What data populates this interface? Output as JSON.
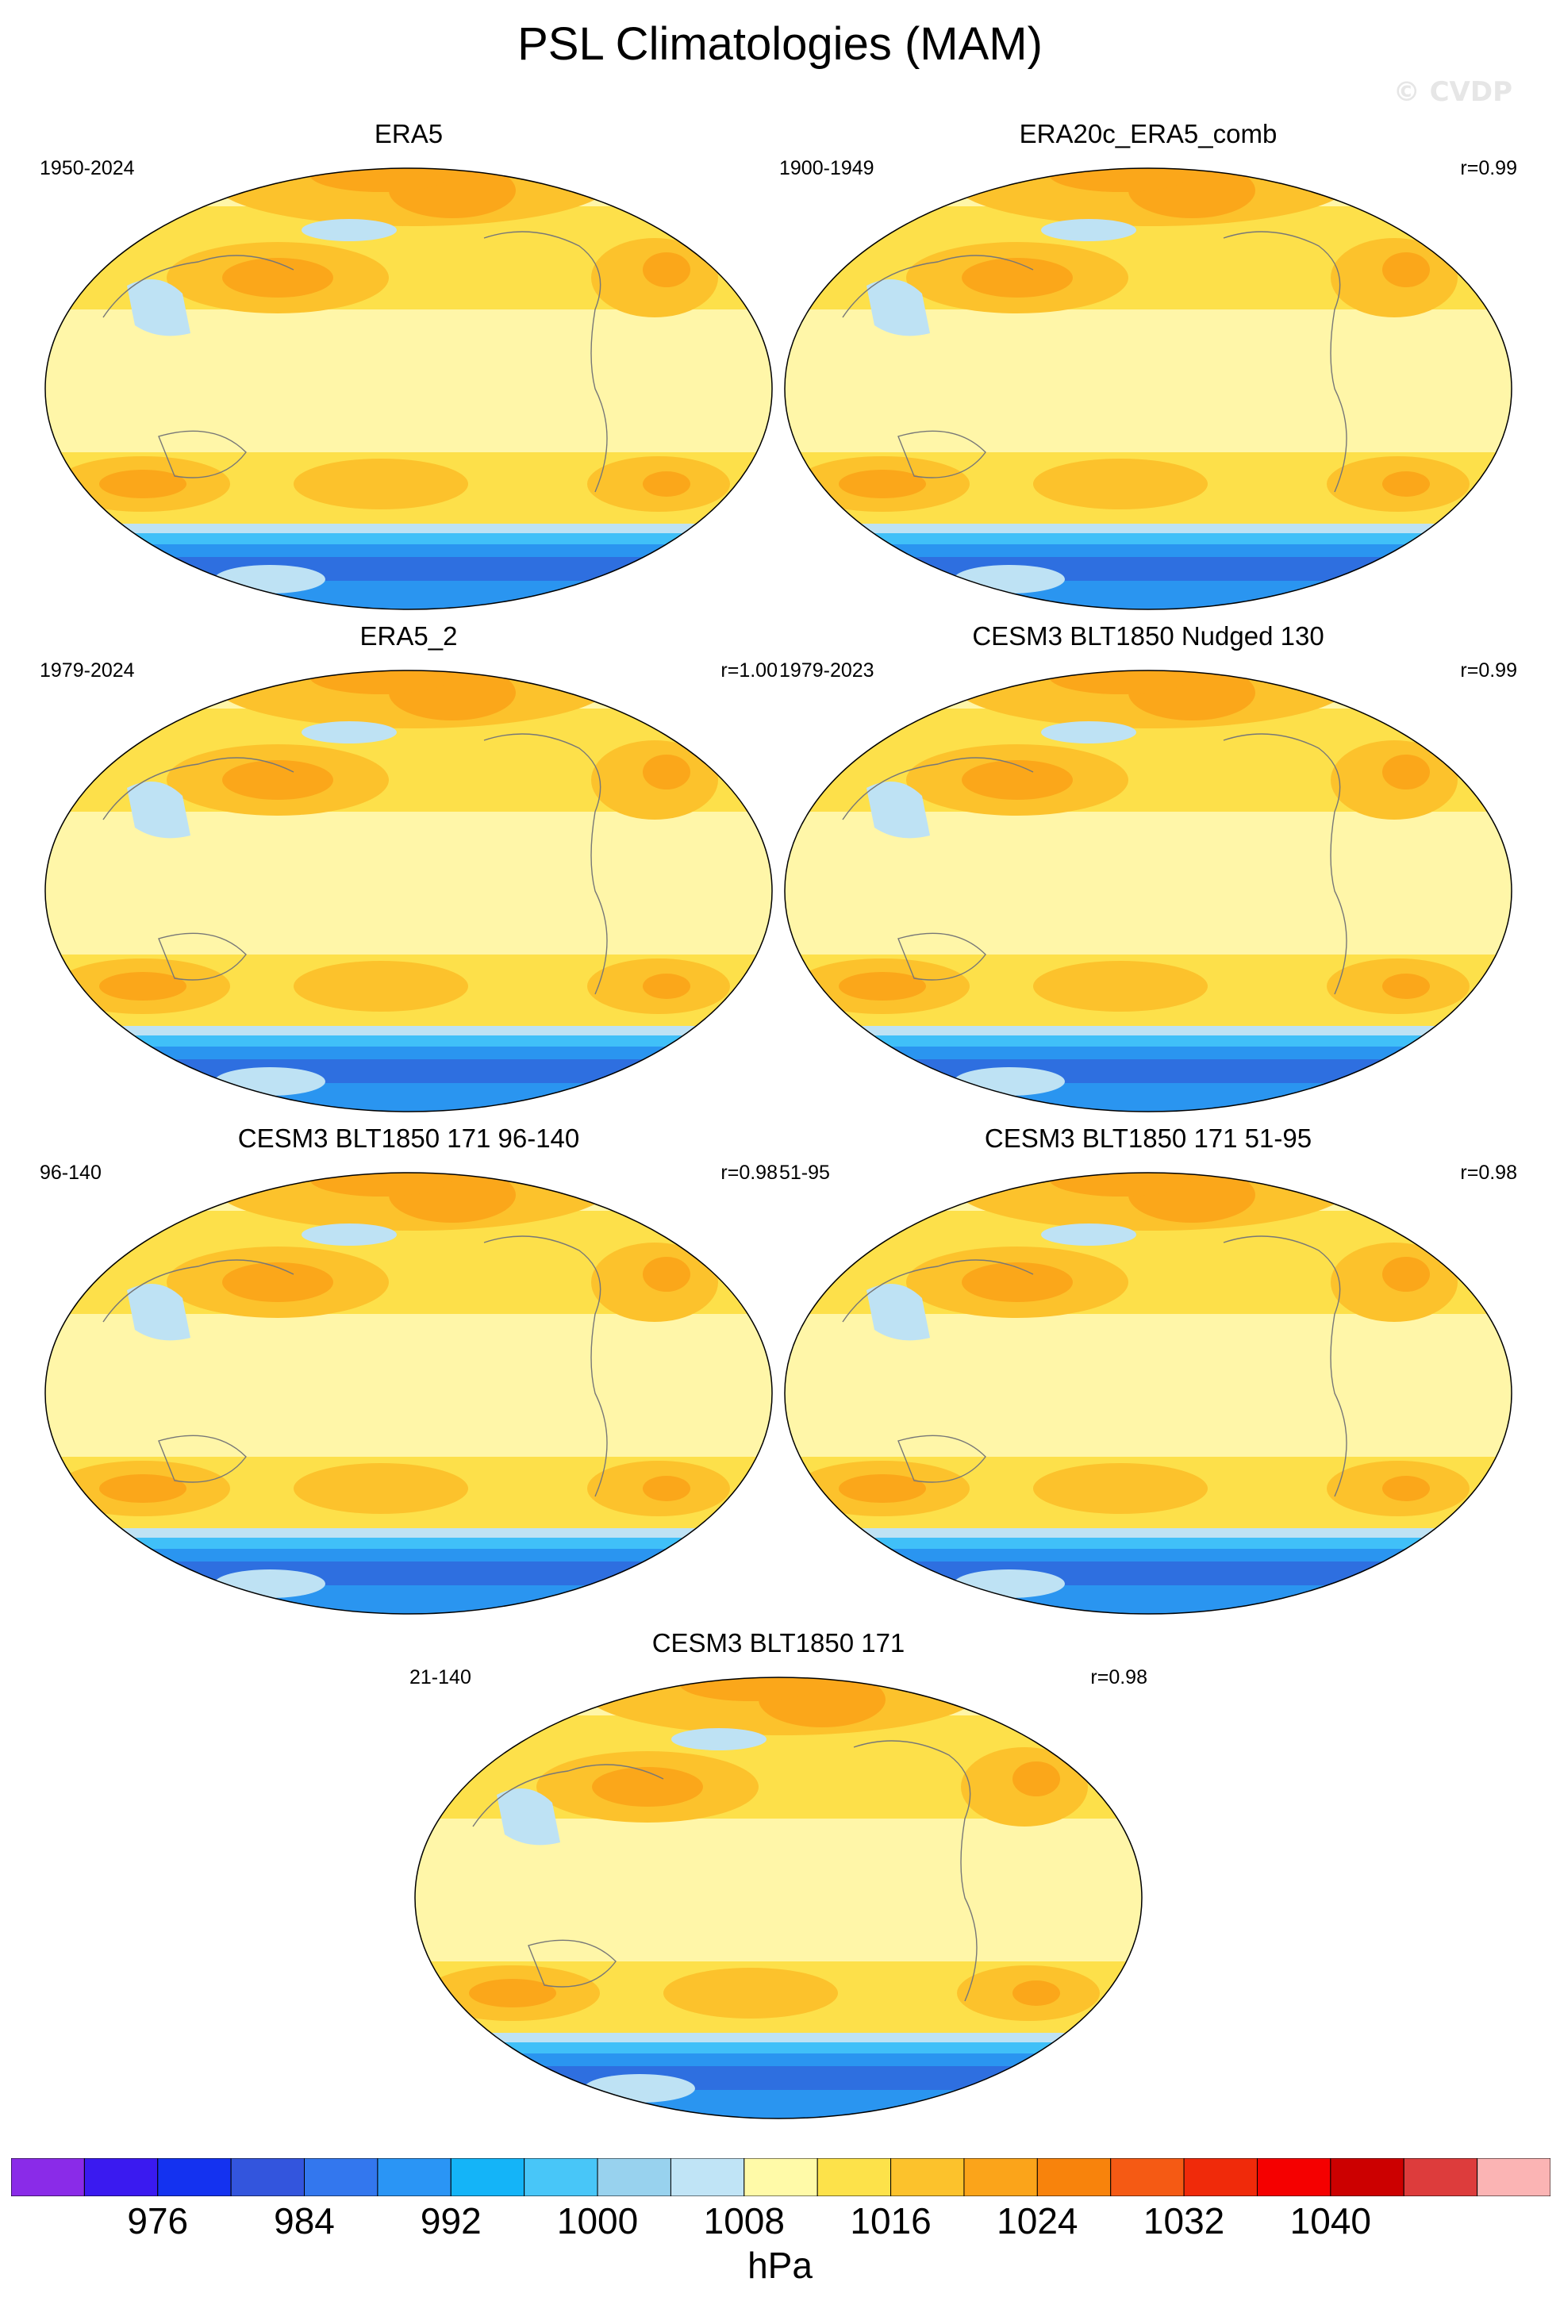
{
  "title": "PSL Climatologies (MAM)",
  "watermark": "© CVDP",
  "units": "hPa",
  "colors": {
    "ocean_base": "#fff6a8",
    "mid_high": "#fde04a",
    "high1": "#fcc22c",
    "high2": "#fba71a",
    "high3": "#f88a10",
    "low_pale": "#bee2f4",
    "low1": "#40c0f8",
    "low2": "#2a95f0",
    "low3": "#2e6fe0",
    "low4": "#1636e8",
    "coast": "#777777"
  },
  "chart_data": [
    {
      "type": "heatmap",
      "title": "ERA5",
      "period": "1950-2024",
      "correlation": ""
    },
    {
      "type": "heatmap",
      "title": "ERA20c_ERA5_comb",
      "period": "1900-1949",
      "correlation": "r=0.99"
    },
    {
      "type": "heatmap",
      "title": "ERA5_2",
      "period": "1979-2024",
      "correlation": "r=1.00"
    },
    {
      "type": "heatmap",
      "title": "CESM3 BLT1850 Nudged 130",
      "period": "1979-2023",
      "correlation": "r=0.99"
    },
    {
      "type": "heatmap",
      "title": "CESM3 BLT1850 171 96-140",
      "period": "96-140",
      "correlation": "r=0.98"
    },
    {
      "type": "heatmap",
      "title": "CESM3 BLT1850 171 51-95",
      "period": "51-95",
      "correlation": "r=0.98"
    },
    {
      "type": "heatmap",
      "title": "CESM3 BLT1850 171",
      "period": "21-140",
      "correlation": "r=0.98"
    }
  ],
  "colorbar": {
    "colors": [
      "#8a2be8",
      "#3a1af0",
      "#1432f0",
      "#3355dd",
      "#3377ee",
      "#2a95f5",
      "#14b4f8",
      "#48c6f8",
      "#98d2ee",
      "#c0e4f6",
      "#fffaa8",
      "#fde24a",
      "#fcc22c",
      "#fba41a",
      "#f8830c",
      "#f55a14",
      "#f02a0a",
      "#f50000",
      "#cc0000",
      "#dd3c3c",
      "#fbb4b4"
    ],
    "tick_labels": [
      "976",
      "984",
      "992",
      "1000",
      "1008",
      "1016",
      "1024",
      "1032",
      "1040"
    ]
  }
}
